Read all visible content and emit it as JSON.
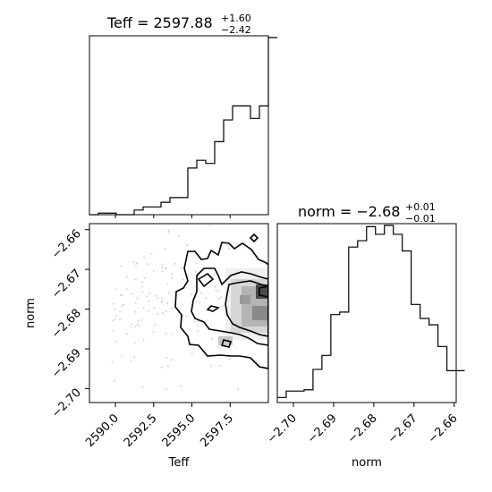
{
  "chart_data": {
    "type": "corner",
    "panels": [
      {
        "id": "teff-hist",
        "type": "histogram",
        "title_main": "Teff = 2597.88",
        "title_sup": "+1.60",
        "title_sub": "−2.42",
        "xlim": [
          2588.3,
          2600.0
        ],
        "bins_start": 2588.3,
        "bin_width": 0.585,
        "counts": [
          0,
          0.05,
          0.05,
          0,
          0,
          0.15,
          0.25,
          0.25,
          0.4,
          0.55,
          0.55,
          1.5,
          1.75,
          1.65,
          2.35,
          3.05,
          3.5,
          3.5,
          3.1,
          3.5,
          5.7
        ]
      },
      {
        "id": "norm-hist",
        "type": "histogram",
        "title_main": "norm = −2.68",
        "title_sup": "+0.01",
        "title_sub": "−0.01",
        "xlim": [
          -2.704,
          -2.6595
        ],
        "bins_start": -2.704,
        "bin_width": 0.00222,
        "counts": [
          0.2,
          0.45,
          0.45,
          0.5,
          1.3,
          1.85,
          3.45,
          3.55,
          6.1,
          6.35,
          6.9,
          6.6,
          6.95,
          6.6,
          5.95,
          3.85,
          3.3,
          3.05,
          2.2,
          1.25,
          1.25
        ]
      },
      {
        "id": "teff-norm-2d",
        "type": "2d-density",
        "xlim": [
          2588.3,
          2600.0
        ],
        "ylim": [
          -2.7035,
          -2.6585
        ]
      }
    ],
    "xlabel_bottom_left": "Teff",
    "xlabel_bottom_right": "norm",
    "ylabel_left": "norm",
    "teff_ticks": [
      "2590.0",
      "2592.5",
      "2595.0",
      "2597.5"
    ],
    "teff_tick_values": [
      2590.0,
      2592.5,
      2595.0,
      2597.5
    ],
    "norm_ticks": [
      "−2.70",
      "−2.69",
      "−2.68",
      "−2.67",
      "−2.66"
    ],
    "norm_tick_values": [
      -2.7,
      -2.69,
      -2.68,
      -2.67,
      -2.66
    ],
    "colors": {
      "line": "#000000",
      "background": "#ffffff",
      "density": "#808080"
    }
  }
}
